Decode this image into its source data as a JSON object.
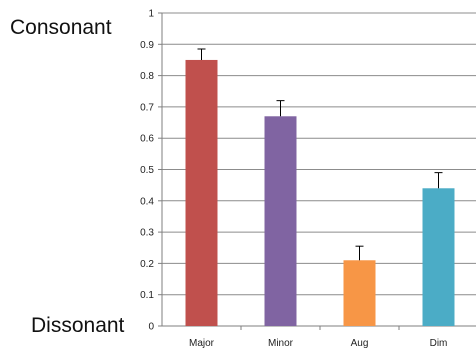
{
  "annotations": {
    "top": "Consonant",
    "bottom": "Dissonant"
  },
  "chart_data": {
    "type": "bar",
    "categories": [
      "Major",
      "Minor",
      "Aug",
      "Dim"
    ],
    "values": [
      0.85,
      0.67,
      0.21,
      0.44
    ],
    "errors": [
      0.035,
      0.05,
      0.045,
      0.05
    ],
    "colors": [
      "#c0504d",
      "#8064a2",
      "#f79646",
      "#4bacc6"
    ],
    "ylim": [
      0,
      1
    ],
    "yticks": [
      "0",
      "0.1",
      "0.2",
      "0.3",
      "0.4",
      "0.5",
      "0.6",
      "0.7",
      "0.8",
      "0.9",
      "1"
    ],
    "grid": true,
    "title": "",
    "xlabel": "",
    "ylabel": ""
  }
}
